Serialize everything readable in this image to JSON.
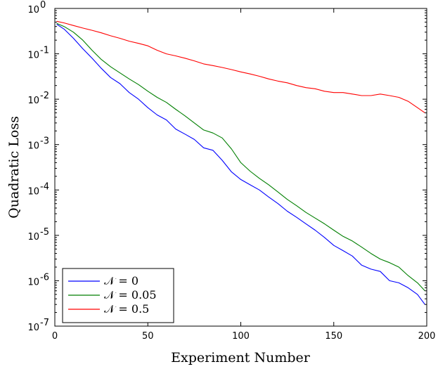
{
  "chart_data": {
    "type": "line",
    "title": "",
    "xlabel": "Experiment Number",
    "ylabel": "Quadratic Loss",
    "xlim": [
      0,
      200
    ],
    "ylim": [
      1e-07,
      1
    ],
    "yscale": "log",
    "xticks": [
      0,
      50,
      100,
      150,
      200
    ],
    "yticks": [
      {
        "value": 1e-07,
        "base": "10",
        "exp": "-7"
      },
      {
        "value": 1e-06,
        "base": "10",
        "exp": "-6"
      },
      {
        "value": 1e-05,
        "base": "10",
        "exp": "-5"
      },
      {
        "value": 0.0001,
        "base": "10",
        "exp": "-4"
      },
      {
        "value": 0.001,
        "base": "10",
        "exp": "-3"
      },
      {
        "value": 0.01,
        "base": "10",
        "exp": "-2"
      },
      {
        "value": 0.1,
        "base": "10",
        "exp": "-1"
      },
      {
        "value": 1,
        "base": "10",
        "exp": "0"
      }
    ],
    "grid": false,
    "legend_position": "bottom-left",
    "series": [
      {
        "name": "𝒩 = 0",
        "color": "#0000ff",
        "x": [
          1,
          5,
          10,
          15,
          20,
          25,
          30,
          35,
          40,
          45,
          50,
          55,
          60,
          65,
          70,
          75,
          80,
          85,
          90,
          95,
          100,
          105,
          110,
          115,
          120,
          125,
          130,
          135,
          140,
          145,
          150,
          155,
          160,
          165,
          170,
          175,
          180,
          185,
          190,
          195,
          199
        ],
        "y": [
          0.45,
          0.35,
          0.22,
          0.13,
          0.08,
          0.048,
          0.03,
          0.022,
          0.014,
          0.01,
          0.0065,
          0.0045,
          0.0035,
          0.0022,
          0.0017,
          0.0013,
          0.00085,
          0.00075,
          0.00045,
          0.00025,
          0.00017,
          0.00013,
          0.0001,
          7e-05,
          5e-05,
          3.4e-05,
          2.5e-05,
          1.8e-05,
          1.3e-05,
          9e-06,
          6e-06,
          4.6e-06,
          3.5e-06,
          2.2e-06,
          1.8e-06,
          1.6e-06,
          1e-06,
          9e-07,
          7e-07,
          5e-07,
          3e-07
        ]
      },
      {
        "name": "𝒩 = 0.05",
        "color": "#007f00",
        "x": [
          1,
          5,
          10,
          15,
          20,
          25,
          30,
          35,
          40,
          45,
          50,
          55,
          60,
          65,
          70,
          75,
          80,
          85,
          90,
          95,
          100,
          105,
          110,
          115,
          120,
          125,
          130,
          135,
          140,
          145,
          150,
          155,
          160,
          165,
          170,
          175,
          180,
          185,
          190,
          195,
          199
        ],
        "y": [
          0.47,
          0.4,
          0.3,
          0.2,
          0.12,
          0.075,
          0.052,
          0.038,
          0.028,
          0.021,
          0.015,
          0.011,
          0.0085,
          0.006,
          0.0043,
          0.003,
          0.0021,
          0.0018,
          0.0014,
          0.0008,
          0.0004,
          0.00026,
          0.00018,
          0.00013,
          9e-05,
          6.2e-05,
          4.5e-05,
          3.2e-05,
          2.4e-05,
          1.8e-05,
          1.3e-05,
          9.5e-06,
          7.5e-06,
          5.5e-06,
          4e-06,
          3e-06,
          2.5e-06,
          2e-06,
          1.3e-06,
          9e-07,
          6e-07
        ]
      },
      {
        "name": "𝒩 = 0.5",
        "color": "#ff0000",
        "x": [
          1,
          5,
          10,
          15,
          20,
          25,
          30,
          35,
          40,
          45,
          50,
          55,
          60,
          65,
          70,
          75,
          80,
          85,
          90,
          95,
          100,
          105,
          110,
          115,
          120,
          125,
          130,
          135,
          140,
          145,
          150,
          155,
          160,
          165,
          170,
          175,
          180,
          185,
          190,
          195,
          199
        ],
        "y": [
          0.52,
          0.48,
          0.42,
          0.37,
          0.33,
          0.29,
          0.25,
          0.22,
          0.19,
          0.17,
          0.15,
          0.12,
          0.1,
          0.09,
          0.08,
          0.07,
          0.06,
          0.055,
          0.05,
          0.045,
          0.04,
          0.036,
          0.032,
          0.028,
          0.025,
          0.023,
          0.02,
          0.018,
          0.017,
          0.015,
          0.014,
          0.014,
          0.013,
          0.012,
          0.012,
          0.013,
          0.012,
          0.011,
          0.009,
          0.0065,
          0.005
        ]
      }
    ]
  }
}
